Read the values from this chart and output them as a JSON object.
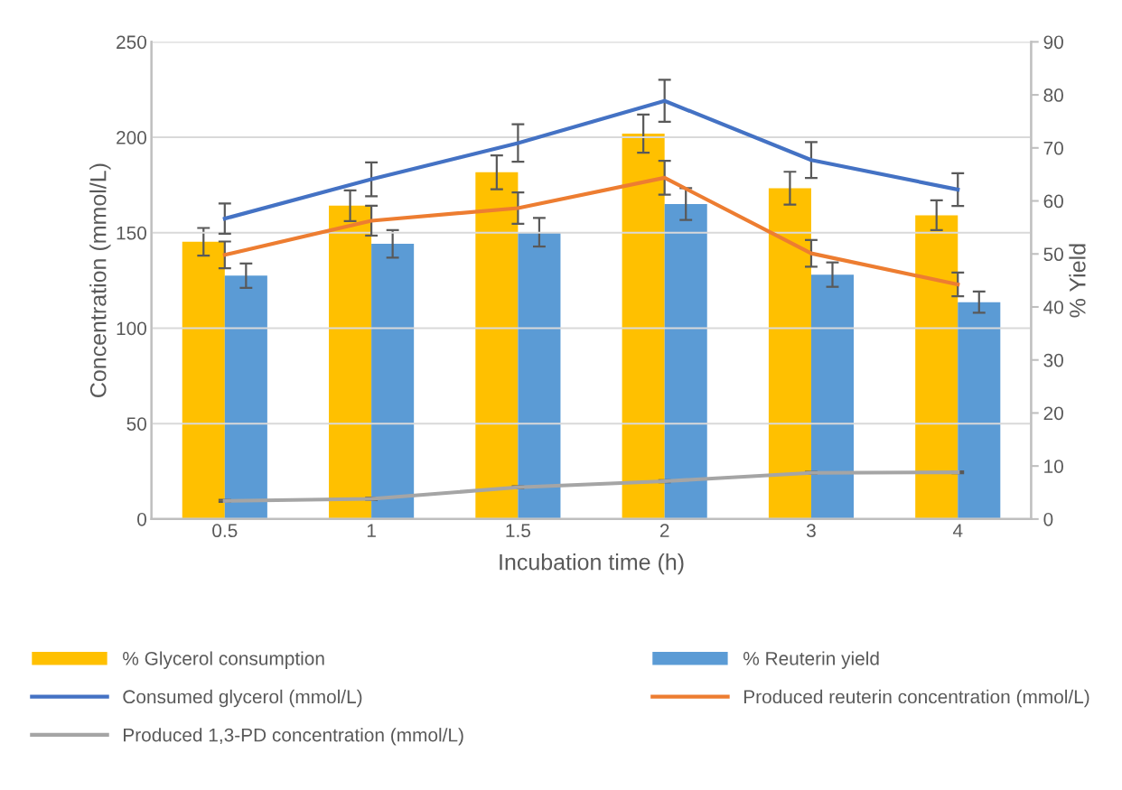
{
  "chart_data": {
    "type": "bar",
    "xlabel": "Incubation time (h)",
    "ylabel": "Concentration (mmol/L)",
    "y2label": "% Yield",
    "categories": [
      "0.5",
      "1",
      "1.5",
      "2",
      "3",
      "4"
    ],
    "series": [
      {
        "name": "% Glycerol consumption",
        "axis": "y2",
        "color": "#ffc000",
        "values": [
          52.3,
          59.1,
          65.4,
          72.7,
          62.4,
          57.3
        ],
        "errors": [
          2.6,
          2.9,
          3.2,
          3.6,
          3.1,
          2.8
        ]
      },
      {
        "name": "% Reuterin yield",
        "axis": "y2",
        "color": "#5b9bd5",
        "values": [
          45.9,
          51.9,
          54.1,
          59.4,
          46.1,
          40.9
        ],
        "errors": [
          2.3,
          2.6,
          2.7,
          3.0,
          2.3,
          2.0
        ]
      },
      {
        "name": "Consumed glycerol (mmol/L)",
        "type": "line",
        "axis": "y",
        "color": "#4472c4",
        "values": [
          157.4,
          178.0,
          197.0,
          219.1,
          188.1,
          172.6
        ],
        "errors": [
          7.9,
          8.9,
          9.8,
          11.0,
          9.4,
          8.6
        ]
      },
      {
        "name": "Produced reuterin concentration (mmol/L)",
        "type": "line",
        "axis": "y",
        "color": "#ed7d31",
        "values": [
          138.4,
          156.3,
          162.9,
          178.8,
          139.2,
          122.9
        ],
        "errors": [
          7.0,
          7.8,
          8.2,
          8.9,
          7.0,
          6.2
        ]
      },
      {
        "name": "Produced 1,3-PD concentration (mmol/L)",
        "type": "line",
        "axis": "y",
        "color": "#a5a5a5",
        "values": [
          9.5,
          10.6,
          16.6,
          19.8,
          24.2,
          24.5
        ],
        "errors": [
          0.5,
          0.5,
          0.5,
          0.5,
          0.5,
          0.5
        ]
      }
    ],
    "ylim": [
      0,
      250
    ],
    "yticks": [
      0,
      50,
      100,
      150,
      200,
      250
    ],
    "y2lim": [
      0,
      90
    ],
    "y2ticks": [
      0,
      10,
      20,
      30,
      40,
      50,
      60,
      70,
      80,
      90
    ],
    "grid": "y",
    "legend": "bottom",
    "marker": "none",
    "line_style": "solid"
  }
}
